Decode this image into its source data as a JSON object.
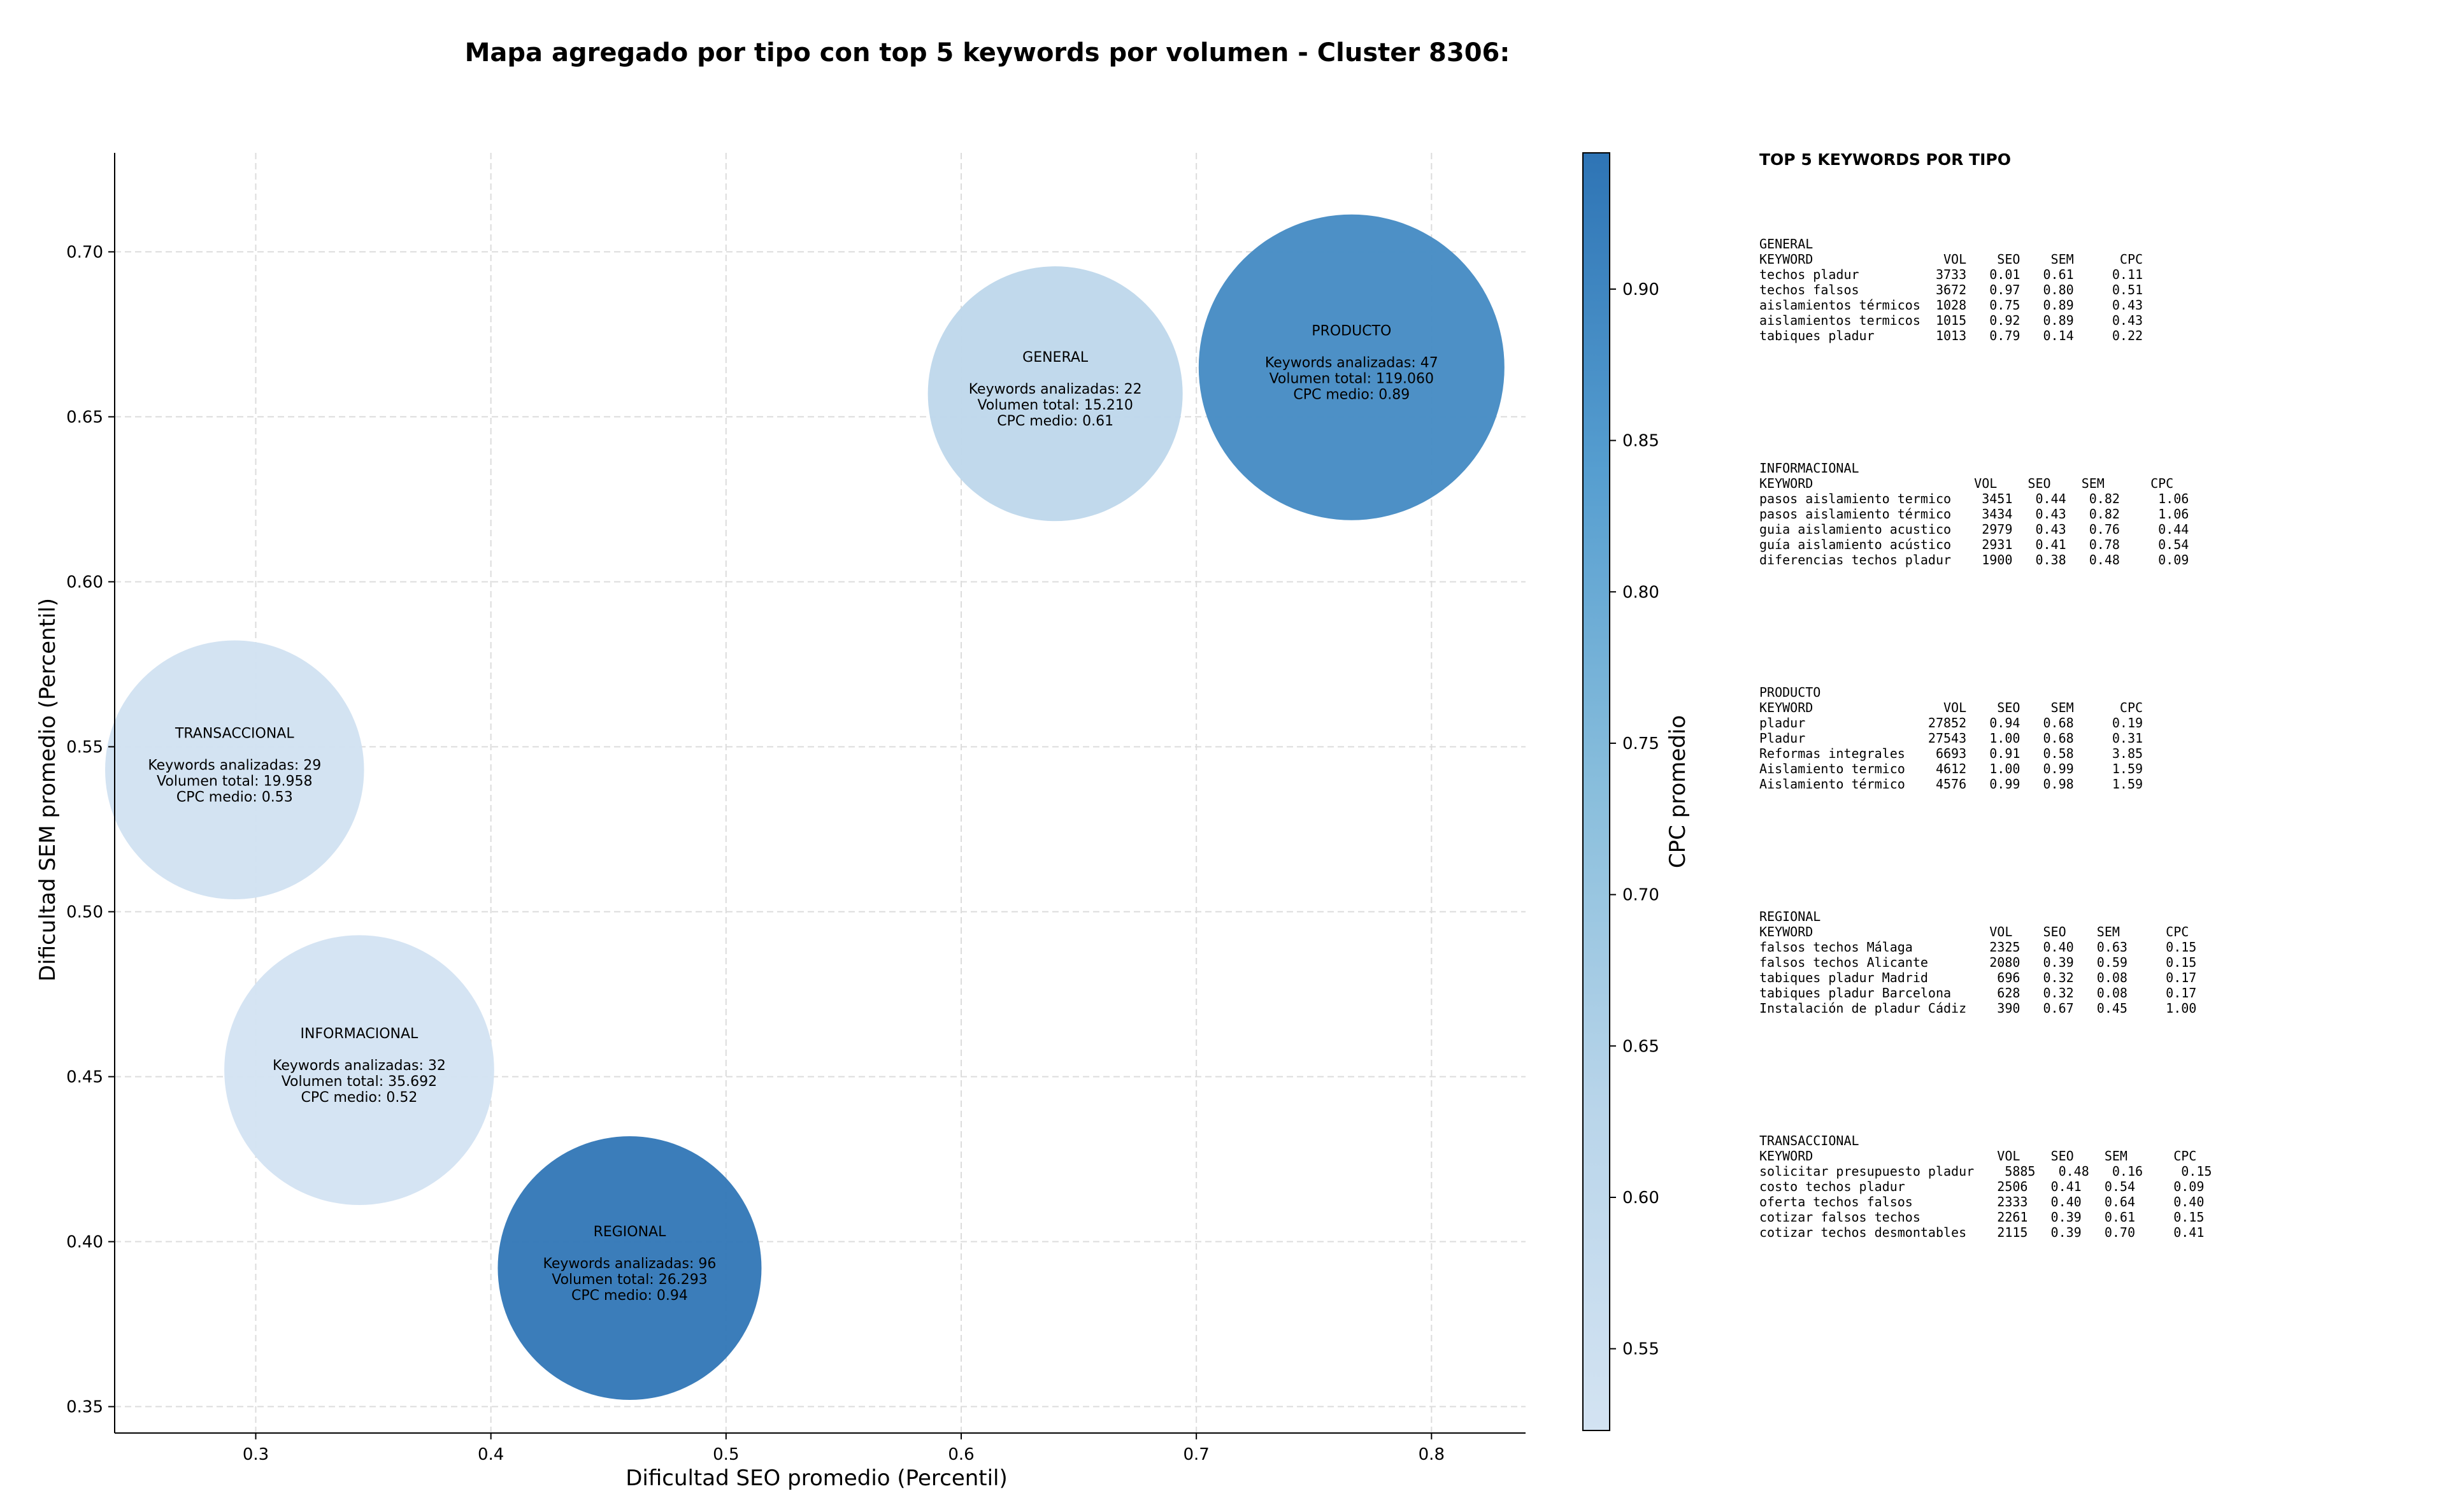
{
  "chart_data": {
    "type": "scatter",
    "title": "Mapa agregado por tipo con top 5 keywords por volumen - Cluster 8306:",
    "xlabel": "Dificultad SEO promedio (Percentil)",
    "ylabel": "Dificultad SEM promedio (Percentil)",
    "xlim": [
      0.24,
      0.84
    ],
    "ylim": [
      0.342,
      0.73
    ],
    "xticks": [
      0.3,
      0.4,
      0.5,
      0.6,
      0.7,
      0.8
    ],
    "yticks": [
      0.35,
      0.4,
      0.45,
      0.5,
      0.55,
      0.6,
      0.65,
      0.7
    ],
    "grid": true,
    "bubble_size": "volumen total",
    "color": "CPC medio",
    "colorbar": {
      "label": "CPC promedio",
      "min": 0.523,
      "max": 0.945,
      "ticks": [
        0.55,
        0.6,
        0.65,
        0.7,
        0.75,
        0.8,
        0.85,
        0.9
      ],
      "low_color": "#d3e3f2",
      "high_color": "#2e74b5"
    },
    "points": [
      {
        "label": "GENERAL",
        "x": 0.64,
        "y": 0.657,
        "keywords": 22,
        "volume": "15.210",
        "cpc": 0.61,
        "lines": [
          "GENERAL",
          "",
          "Keywords analizadas: 22",
          "Volumen total: 15.210",
          "CPC medio: 0.61"
        ]
      },
      {
        "label": "PRODUCTO",
        "x": 0.766,
        "y": 0.665,
        "keywords": 47,
        "volume": "119.060",
        "cpc": 0.89,
        "lines": [
          "PRODUCTO",
          "",
          "Keywords analizadas: 47",
          "Volumen total: 119.060",
          "CPC medio: 0.89"
        ]
      },
      {
        "label": "TRANSACCIONAL",
        "x": 0.291,
        "y": 0.543,
        "keywords": 29,
        "volume": "19.958",
        "cpc": 0.53,
        "lines": [
          "TRANSACCIONAL",
          "",
          "Keywords analizadas: 29",
          "Volumen total: 19.958",
          "CPC medio: 0.53"
        ]
      },
      {
        "label": "INFORMACIONAL",
        "x": 0.344,
        "y": 0.452,
        "keywords": 32,
        "volume": "35.692",
        "cpc": 0.52,
        "lines": [
          "INFORMACIONAL",
          "",
          "Keywords analizadas: 32",
          "Volumen total: 35.692",
          "CPC medio: 0.52"
        ]
      },
      {
        "label": "REGIONAL",
        "x": 0.459,
        "y": 0.392,
        "keywords": 96,
        "volume": "26.293",
        "cpc": 0.94,
        "lines": [
          "REGIONAL",
          "",
          "Keywords analizadas: 96",
          "Volumen total: 26.293",
          "CPC medio: 0.94"
        ]
      }
    ]
  },
  "side_panel": {
    "title": "TOP 5 KEYWORDS POR TIPO",
    "blocks": [
      {
        "text": "GENERAL\nKEYWORD                 VOL    SEO    SEM      CPC\ntechos pladur          3733   0.01   0.61     0.11\ntechos falsos          3672   0.97   0.80     0.51\naislamientos térmicos  1028   0.75   0.89     0.43\naislamientos termicos  1015   0.92   0.89     0.43\ntabiques pladur        1013   0.79   0.14     0.22"
      },
      {
        "text": "INFORMACIONAL\nKEYWORD                     VOL    SEO    SEM      CPC\npasos aislamiento termico    3451   0.44   0.82     1.06\npasos aislamiento térmico    3434   0.43   0.82     1.06\nguia aislamiento acustico    2979   0.43   0.76     0.44\nguía aislamiento acústico    2931   0.41   0.78     0.54\ndiferencias techos pladur    1900   0.38   0.48     0.09"
      },
      {
        "text": "PRODUCTO\nKEYWORD                 VOL    SEO    SEM      CPC\npladur                27852   0.94   0.68     0.19\nPladur                27543   1.00   0.68     0.31\nReformas integrales    6693   0.91   0.58     3.85\nAislamiento termico    4612   1.00   0.99     1.59\nAislamiento térmico    4576   0.99   0.98     1.59"
      },
      {
        "text": "REGIONAL\nKEYWORD                       VOL    SEO    SEM      CPC\nfalsos techos Málaga          2325   0.40   0.63     0.15\nfalsos techos Alicante        2080   0.39   0.59     0.15\ntabiques pladur Madrid         696   0.32   0.08     0.17\ntabiques pladur Barcelona      628   0.32   0.08     0.17\nInstalación de pladur Cádiz    390   0.67   0.45     1.00"
      },
      {
        "text": "TRANSACCIONAL\nKEYWORD                        VOL    SEO    SEM      CPC\nsolicitar presupuesto pladur    5885   0.48   0.16     0.15\ncosto techos pladur            2506   0.41   0.54     0.09\noferta techos falsos           2333   0.40   0.64     0.40\ncotizar falsos techos          2261   0.39   0.61     0.15\ncotizar techos desmontables    2115   0.39   0.70     0.41"
      }
    ]
  }
}
